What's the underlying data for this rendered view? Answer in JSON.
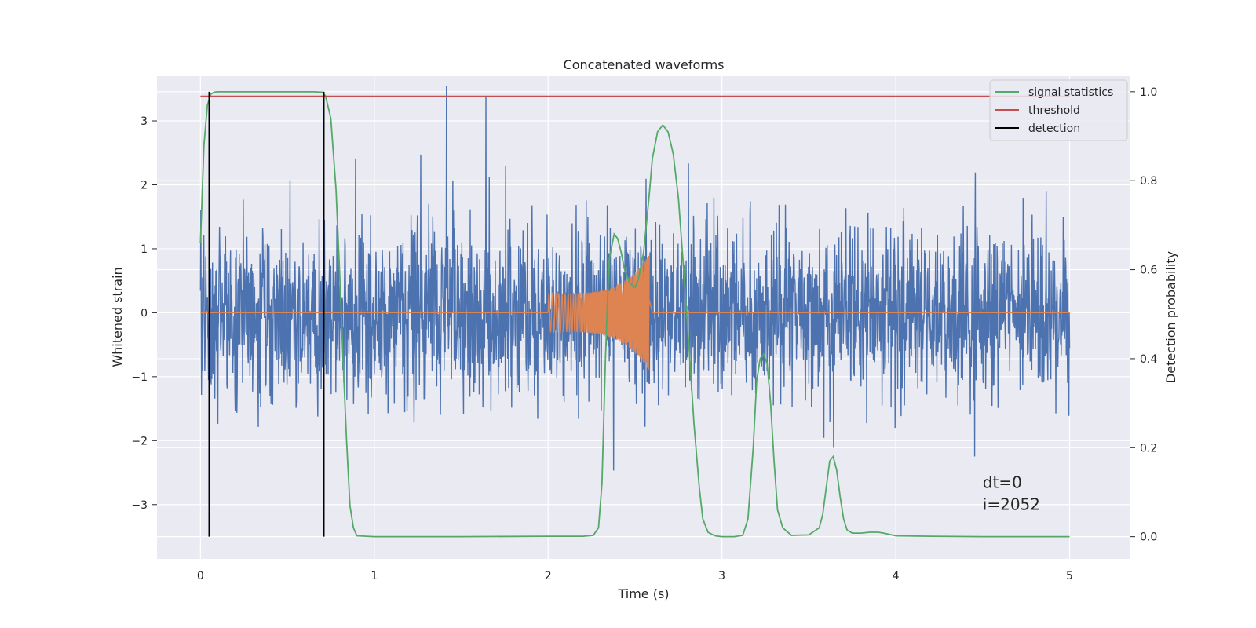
{
  "chart_data": {
    "type": "line",
    "title": "Concatenated waveforms",
    "xlabel": "Time (s)",
    "ylabel": "Whitened strain",
    "y2label": "Detection probability",
    "xlim": [
      -0.25,
      5.35
    ],
    "ylim": [
      -3.85,
      3.7
    ],
    "y2lim": [
      -0.05,
      1.035
    ],
    "xticks": [
      0,
      1,
      2,
      3,
      4,
      5
    ],
    "yticks": [
      -3,
      -2,
      -1,
      0,
      1,
      2,
      3
    ],
    "y2ticks": [
      0.0,
      0.2,
      0.4,
      0.6,
      0.8,
      1.0
    ],
    "xtick_labels": [
      "0",
      "1",
      "2",
      "3",
      "4",
      "5"
    ],
    "ytick_labels": [
      "−3",
      "−2",
      "−1",
      "0",
      "1",
      "2",
      "3"
    ],
    "y2tick_labels": [
      "0.0",
      "0.2",
      "0.4",
      "0.6",
      "0.8",
      "1.0"
    ],
    "grid": true,
    "legend_position": "top-right",
    "colors": {
      "strain": "#4c72b0",
      "injection": "#dd8452",
      "signal_statistics": "#55a868",
      "threshold": "#c44e52",
      "detection": "#000000",
      "plot_background": "#eaeaf2",
      "grid": "#ffffff"
    },
    "legend": [
      {
        "label": "signal statistics",
        "color": "#55a868"
      },
      {
        "label": "threshold",
        "color": "#c44e52"
      },
      {
        "label": "detection",
        "color": "#000000"
      }
    ],
    "series": [
      {
        "name": "signal statistics",
        "axis": "right",
        "x": [
          0.0,
          0.02,
          0.04,
          0.06,
          0.08,
          0.1,
          0.2,
          0.5,
          0.65,
          0.7,
          0.72,
          0.75,
          0.78,
          0.8,
          0.82,
          0.84,
          0.86,
          0.88,
          0.9,
          1.0,
          1.5,
          2.0,
          2.2,
          2.26,
          2.29,
          2.31,
          2.33,
          2.35,
          2.38,
          2.4,
          2.42,
          2.44,
          2.47,
          2.5,
          2.52,
          2.55,
          2.58,
          2.6,
          2.63,
          2.66,
          2.69,
          2.72,
          2.75,
          2.78,
          2.81,
          2.84,
          2.87,
          2.89,
          2.92,
          2.96,
          3.0,
          3.07,
          3.12,
          3.15,
          3.18,
          3.2,
          3.22,
          3.24,
          3.26,
          3.28,
          3.3,
          3.32,
          3.35,
          3.4,
          3.5,
          3.56,
          3.58,
          3.6,
          3.62,
          3.64,
          3.66,
          3.68,
          3.7,
          3.72,
          3.75,
          3.8,
          3.85,
          3.9,
          3.93,
          4.0,
          4.2,
          4.5,
          5.0
        ],
        "y": [
          0.66,
          0.88,
          0.97,
          0.995,
          0.999,
          1.0,
          1.0,
          1.0,
          1.0,
          0.999,
          0.99,
          0.94,
          0.78,
          0.6,
          0.4,
          0.22,
          0.07,
          0.02,
          0.002,
          0.0,
          0.0,
          0.001,
          0.001,
          0.003,
          0.02,
          0.12,
          0.4,
          0.62,
          0.68,
          0.67,
          0.64,
          0.6,
          0.57,
          0.56,
          0.58,
          0.64,
          0.76,
          0.85,
          0.91,
          0.925,
          0.91,
          0.86,
          0.76,
          0.6,
          0.43,
          0.25,
          0.11,
          0.04,
          0.01,
          0.002,
          0.0,
          0.0,
          0.003,
          0.04,
          0.2,
          0.35,
          0.4,
          0.41,
          0.39,
          0.3,
          0.17,
          0.06,
          0.02,
          0.003,
          0.004,
          0.02,
          0.05,
          0.11,
          0.17,
          0.18,
          0.15,
          0.09,
          0.04,
          0.015,
          0.008,
          0.008,
          0.01,
          0.01,
          0.008,
          0.002,
          0.001,
          0.0,
          0.0
        ]
      },
      {
        "name": "threshold",
        "axis": "right",
        "x": [
          0.0,
          5.0
        ],
        "y": [
          0.99,
          0.99
        ]
      },
      {
        "name": "detection",
        "axis": "right",
        "x": [
          0.05,
          0.05,
          0.71,
          0.71
        ],
        "segments": [
          [
            0.05,
            0.0,
            0.05,
            1.0
          ],
          [
            0.71,
            0.0,
            0.71,
            1.0
          ]
        ]
      }
    ],
    "annotations": [
      {
        "text": "dt=0",
        "x": 4.5,
        "y": 0.11
      },
      {
        "text": "i=2052",
        "x": 4.5,
        "y": 0.06
      }
    ]
  }
}
